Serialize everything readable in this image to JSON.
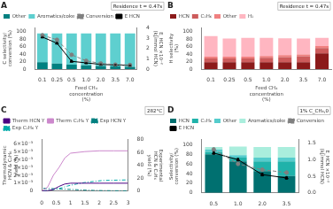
{
  "chart_data": [
    {
      "type": "bar",
      "title": "A",
      "stacked": true,
      "grid": false,
      "legend": "upper left",
      "annotations": [
        "Residence t = 0.47s"
      ],
      "categories": [
        "0.1",
        "0.25",
        "0.5",
        "1.0",
        "2.0",
        "3.5",
        "7.0"
      ],
      "xlabel": "Feed CH₄ concentration (%)",
      "ylabel": "C selectivity/conversion (%)",
      "y2label": "E_HCN ×10⁻² (kJ/mmol HCN)",
      "ylim": [
        0,
        110
      ],
      "yticks": [
        0,
        20,
        40,
        60,
        80,
        100
      ],
      "y2lim": [
        0,
        4
      ],
      "y2ticks": [
        0,
        1,
        2,
        3,
        4
      ],
      "series": [
        {
          "name": "Other",
          "type": "bar",
          "color": "#008080",
          "values": [
            18,
            15,
            12,
            10,
            8,
            7,
            6
          ]
        },
        {
          "name": "Aromatics/coke",
          "type": "bar",
          "color": "#5ECFCF",
          "values": [
            77,
            80,
            83,
            85,
            87,
            88,
            89
          ]
        },
        {
          "name": "Conversion",
          "type": "line",
          "color": "#808080",
          "line_style": "dashed",
          "marker": "circle",
          "values": [
            90,
            78,
            38,
            22,
            15,
            12,
            11
          ],
          "errors": [
            3,
            3,
            3,
            3,
            3,
            3,
            3
          ]
        },
        {
          "name": "E HCN",
          "type": "line",
          "axis": "y2",
          "color": "#000000",
          "line_style": "solid",
          "marker": "triangle",
          "values": [
            3.1,
            2.5,
            0.75,
            0.6,
            0.45,
            0.4,
            0.35
          ],
          "errors": [
            0.05,
            0.05,
            0.05,
            0.05,
            0.05,
            0.05,
            0.05
          ]
        }
      ]
    },
    {
      "type": "bar",
      "title": "B",
      "stacked": true,
      "grid": false,
      "legend": "upper left",
      "annotations": [
        "Residence t = 0.47s"
      ],
      "categories": [
        "0.1",
        "0.25",
        "0.5",
        "1.0",
        "2.0",
        "3.5",
        "7.0"
      ],
      "xlabel": "Feed CH₄ concentration (%)",
      "ylabel": "H selectivity (%)",
      "ylim": [
        0,
        110
      ],
      "yticks": [
        0,
        20,
        40,
        60,
        80,
        100
      ],
      "series": [
        {
          "name": "HCN",
          "type": "bar",
          "color": "#8B1A1A",
          "values": [
            18,
            18,
            18,
            18,
            18,
            18,
            42
          ]
        },
        {
          "name": "C₂H₆",
          "type": "bar",
          "color": "#CD5C5C",
          "values": [
            10,
            10,
            10,
            12,
            14,
            16,
            14
          ]
        },
        {
          "name": "Other",
          "type": "bar",
          "color": "#F08080",
          "values": [
            5,
            5,
            5,
            5,
            5,
            5,
            5
          ]
        },
        {
          "name": "H₂",
          "type": "bar",
          "color": "#FFB6C1",
          "values": [
            55,
            48,
            50,
            48,
            45,
            42,
            22
          ]
        }
      ]
    },
    {
      "type": "line",
      "title": "C",
      "grid": false,
      "legend": "upper left",
      "annotations": [
        "282°C"
      ],
      "ylabel": "Thermodynamic HCN & C₂H₆\nyield (%)",
      "y2label": "Experimental HCN & C₂H₆ yield (%)",
      "xlim": [
        0,
        3
      ],
      "xticks": [
        0,
        0.5,
        1,
        1.5,
        2,
        2.5,
        3
      ],
      "ylim": [
        0,
        0.0065
      ],
      "yticks": [
        0,
        {
          "value": 0.001,
          "label": "1×10⁻³"
        },
        {
          "value": 0.002,
          "label": "2×10⁻³"
        },
        {
          "value": 0.003,
          "label": "3×10⁻³"
        },
        {
          "value": 0.004,
          "label": "4×10⁻³"
        },
        {
          "value": 0.005,
          "label": "5×10⁻³"
        },
        {
          "value": 0.006,
          "label": "6×10⁻³"
        }
      ],
      "y2lim": [
        0,
        80
      ],
      "y2ticks": [
        0,
        20,
        40,
        60,
        80
      ],
      "series": [
        {
          "name": "Therm HCN Y",
          "color": "#4B0082",
          "line_style": "solid",
          "x": [
            0,
            0.2,
            0.4,
            0.6,
            0.8,
            1.0,
            1.5,
            2.0,
            2.5,
            3.0
          ],
          "values": [
            0,
            5e-05,
            0.0002,
            0.0006,
            0.0009,
            0.001,
            0.001,
            0.001,
            0.001,
            0.001
          ]
        },
        {
          "name": "Therm C₂H₆ Y",
          "color": "#CC88CC",
          "line_style": "solid",
          "x": [
            0,
            0.2,
            0.4,
            0.6,
            0.8,
            1.0,
            1.5,
            2.0,
            2.5,
            3.0
          ],
          "values": [
            0,
            0.0005,
            0.002,
            0.003,
            0.0042,
            0.0048,
            0.005,
            0.0051,
            0.0051,
            0.0051
          ]
        },
        {
          "name": "Exp HCN Y",
          "axis": "y2",
          "color": "#008080",
          "line_style": "dashdot",
          "x": [
            0.05,
            0.3,
            0.6,
            0.9,
            1.2,
            1.5,
            1.8,
            2.1,
            2.5,
            3.0
          ],
          "values": [
            4.2,
            4.0,
            3.5,
            2.8,
            2.2,
            1.5,
            1.1,
            0.8,
            0.6,
            0.5
          ]
        },
        {
          "name": "Exp C₂H₆ Y",
          "axis": "y2",
          "color": "#00AAAA",
          "line_style": "dashdot",
          "x": [
            0.05,
            0.3,
            0.6,
            0.9,
            1.2,
            1.5,
            1.8,
            2.1,
            2.5,
            3.0
          ],
          "values": [
            0.5,
            1.5,
            4.0,
            8.0,
            11.0,
            13.5,
            15.0,
            16.5,
            17.0,
            17.5
          ]
        }
      ]
    },
    {
      "type": "bar",
      "title": "D",
      "stacked": true,
      "grid": false,
      "legend": "upper left",
      "annotations": [
        "1% C_CH₄,0"
      ],
      "categories": [
        "0.5",
        "1.0",
        "2.0",
        "3.5"
      ],
      "ylabel": "Selectivity/conversion (%)",
      "y2label": "E_HCN ×10⁻² (kJ/mmol HCN)",
      "ylim": [
        0,
        110
      ],
      "yticks": [
        0,
        20,
        40,
        60,
        80,
        100
      ],
      "y2lim": [
        0,
        1.6
      ],
      "y2ticks": [
        {
          "value": 0,
          "label": "0.0"
        },
        0.5,
        {
          "value": 1,
          "label": "1.0"
        },
        1.5
      ],
      "series": [
        {
          "name": "HCN",
          "type": "bar",
          "color": "#007070",
          "values": [
            80,
            65,
            45,
            35
          ]
        },
        {
          "name": "C₂H₆",
          "type": "bar",
          "color": "#20B2AA",
          "values": [
            5,
            8,
            20,
            30
          ]
        },
        {
          "name": "Other",
          "type": "bar",
          "color": "#55CCCC",
          "values": [
            5,
            5,
            8,
            8
          ]
        },
        {
          "name": "Aromatics/coke",
          "type": "bar",
          "color": "#AAEEDD",
          "values": [
            5,
            18,
            22,
            22
          ]
        },
        {
          "name": "Conversion",
          "type": "line",
          "color": "#808080",
          "line_style": "dashed",
          "marker": "circle",
          "values": [
            90,
            60,
            48,
            42
          ],
          "errors": [
            3,
            3,
            3,
            3
          ]
        },
        {
          "name": "E HCN",
          "type": "line",
          "axis": "y2",
          "color": "#000000",
          "line_style": "solid",
          "marker": "triangle",
          "values": [
            1.2,
            1.0,
            0.55,
            0.45
          ],
          "errors": [
            0.04,
            0.04,
            0.04,
            0.04
          ]
        }
      ]
    }
  ]
}
